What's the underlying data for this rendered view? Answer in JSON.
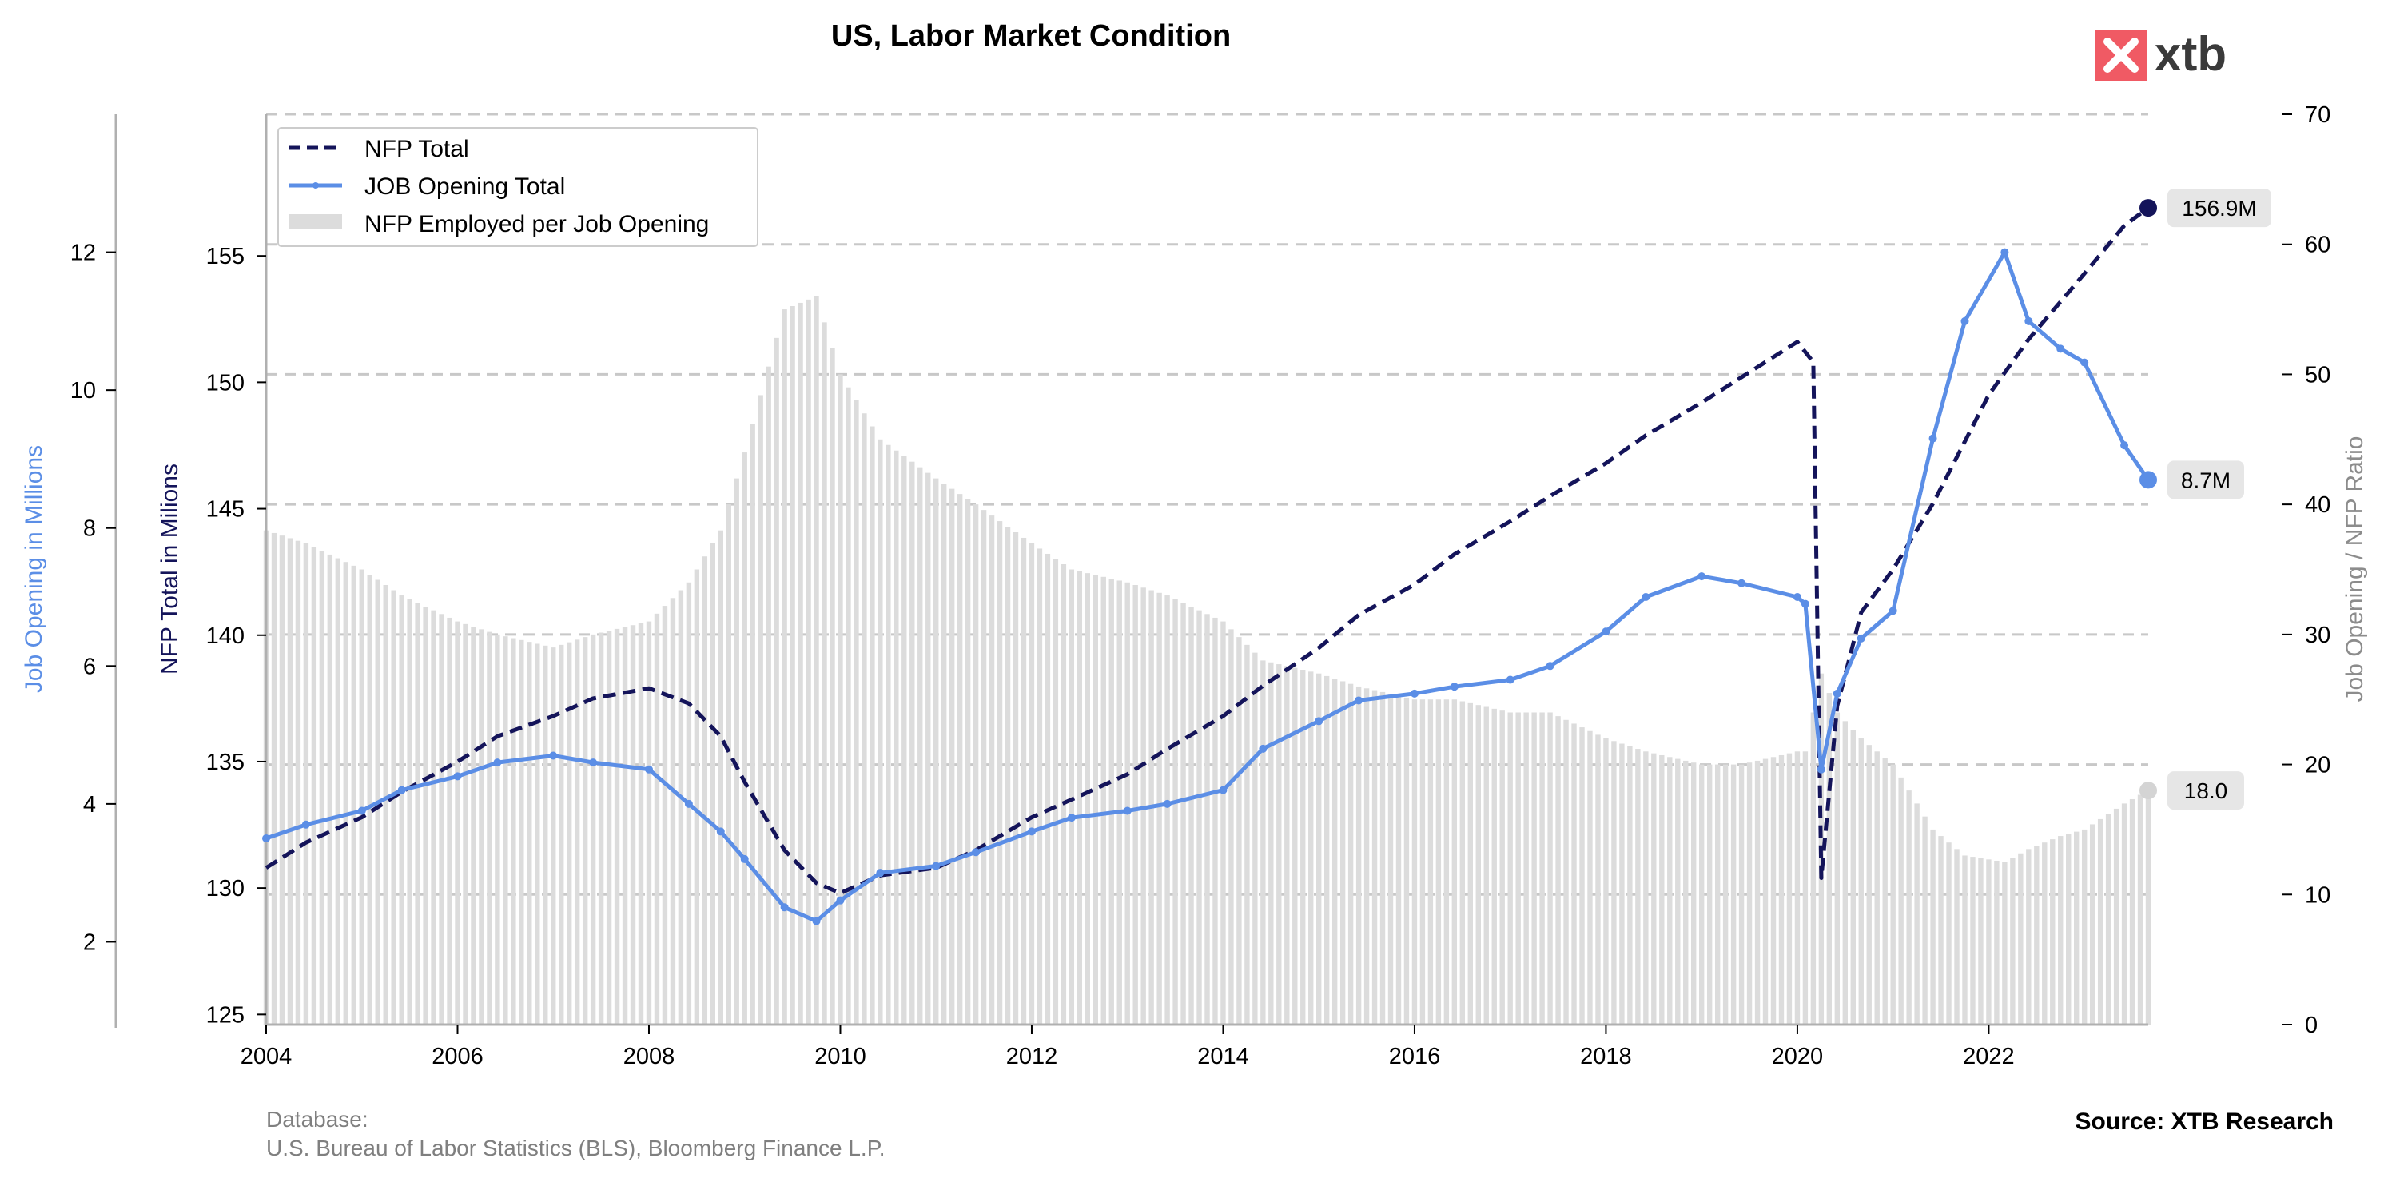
{
  "title": "US, Labor Market Condition",
  "logo": {
    "text": "xtb",
    "color": "#f05a64"
  },
  "footer": {
    "database_label": "Database:",
    "database_sources": "U.S. Bureau of Labor Statistics (BLS), Bloomberg Finance L.P.",
    "source": "Source: XTB Research"
  },
  "chart_data": {
    "type": "line",
    "title": "US, Labor Market Condition",
    "x_range": [
      "2004-01",
      "2023-09"
    ],
    "x_ticks": [
      "2004",
      "2006",
      "2008",
      "2010",
      "2012",
      "2014",
      "2016",
      "2018",
      "2020",
      "2022"
    ],
    "axes": {
      "left_outer": {
        "label": "Job Opening in Millions",
        "ticks": [
          "2",
          "4",
          "6",
          "8",
          "10",
          "12"
        ],
        "range": [
          0.8,
          14.0
        ],
        "color": "#5b8ee6"
      },
      "left_inner": {
        "label": "NFP Total in Milions",
        "ticks": [
          "125",
          "130",
          "135",
          "140",
          "145",
          "150",
          "155"
        ],
        "range": [
          124.6,
          160.6
        ],
        "color": "#14145a"
      },
      "right": {
        "label": "Job Opening / NFP Ratio",
        "ticks": [
          "0",
          "10",
          "20",
          "30",
          "40",
          "50",
          "60",
          "70"
        ],
        "range": [
          0,
          70
        ],
        "color": "#8c8c8c"
      }
    },
    "grid": "horizontal dashed on right axis",
    "legend": {
      "placement": "top-left",
      "entries": [
        "NFP Total",
        "JOB Opening Total",
        "NFP Employed per Job Opening"
      ]
    },
    "series": [
      {
        "name": "NFP Total",
        "axis": "left_inner",
        "style": "dashed",
        "color": "#14145a",
        "end_label": "156.9M",
        "points": [
          [
            "2004-01",
            130.8
          ],
          [
            "2004-06",
            131.8
          ],
          [
            "2005-01",
            132.8
          ],
          [
            "2005-06",
            133.8
          ],
          [
            "2006-01",
            135.0
          ],
          [
            "2006-06",
            136.0
          ],
          [
            "2007-01",
            136.8
          ],
          [
            "2007-06",
            137.5
          ],
          [
            "2008-01",
            137.9
          ],
          [
            "2008-06",
            137.3
          ],
          [
            "2008-10",
            136.0
          ],
          [
            "2009-01",
            134.2
          ],
          [
            "2009-06",
            131.5
          ],
          [
            "2009-10",
            130.2
          ],
          [
            "2010-01",
            129.8
          ],
          [
            "2010-06",
            130.5
          ],
          [
            "2011-01",
            130.8
          ],
          [
            "2011-06",
            131.5
          ],
          [
            "2012-01",
            132.8
          ],
          [
            "2012-06",
            133.5
          ],
          [
            "2013-01",
            134.5
          ],
          [
            "2013-06",
            135.5
          ],
          [
            "2014-01",
            136.8
          ],
          [
            "2014-06",
            138.0
          ],
          [
            "2015-01",
            139.5
          ],
          [
            "2015-06",
            140.8
          ],
          [
            "2016-01",
            142.0
          ],
          [
            "2016-06",
            143.2
          ],
          [
            "2017-01",
            144.5
          ],
          [
            "2017-06",
            145.5
          ],
          [
            "2018-01",
            146.8
          ],
          [
            "2018-06",
            147.9
          ],
          [
            "2019-01",
            149.2
          ],
          [
            "2019-06",
            150.2
          ],
          [
            "2020-01",
            151.6
          ],
          [
            "2020-03",
            150.8
          ],
          [
            "2020-04",
            130.4
          ],
          [
            "2020-06",
            137.2
          ],
          [
            "2020-09",
            140.9
          ],
          [
            "2021-01",
            142.6
          ],
          [
            "2021-06",
            145.2
          ],
          [
            "2022-01",
            149.5
          ],
          [
            "2022-06",
            151.7
          ],
          [
            "2023-01",
            154.3
          ],
          [
            "2023-06",
            156.2
          ],
          [
            "2023-09",
            156.9
          ]
        ]
      },
      {
        "name": "JOB Opening Total",
        "axis": "left_outer",
        "style": "solid with markers",
        "color": "#5b8ee6",
        "end_label": "8.7M",
        "points": [
          [
            "2004-01",
            3.5
          ],
          [
            "2004-06",
            3.7
          ],
          [
            "2005-01",
            3.9
          ],
          [
            "2005-06",
            4.2
          ],
          [
            "2006-01",
            4.4
          ],
          [
            "2006-06",
            4.6
          ],
          [
            "2007-01",
            4.7
          ],
          [
            "2007-06",
            4.6
          ],
          [
            "2008-01",
            4.5
          ],
          [
            "2008-06",
            4.0
          ],
          [
            "2008-10",
            3.6
          ],
          [
            "2009-01",
            3.2
          ],
          [
            "2009-06",
            2.5
          ],
          [
            "2009-10",
            2.3
          ],
          [
            "2010-01",
            2.6
          ],
          [
            "2010-06",
            3.0
          ],
          [
            "2011-01",
            3.1
          ],
          [
            "2011-06",
            3.3
          ],
          [
            "2012-01",
            3.6
          ],
          [
            "2012-06",
            3.8
          ],
          [
            "2013-01",
            3.9
          ],
          [
            "2013-06",
            4.0
          ],
          [
            "2014-01",
            4.2
          ],
          [
            "2014-06",
            4.8
          ],
          [
            "2015-01",
            5.2
          ],
          [
            "2015-06",
            5.5
          ],
          [
            "2016-01",
            5.6
          ],
          [
            "2016-06",
            5.7
          ],
          [
            "2017-01",
            5.8
          ],
          [
            "2017-06",
            6.0
          ],
          [
            "2018-01",
            6.5
          ],
          [
            "2018-06",
            7.0
          ],
          [
            "2019-01",
            7.3
          ],
          [
            "2019-06",
            7.2
          ],
          [
            "2020-01",
            7.0
          ],
          [
            "2020-02",
            6.9
          ],
          [
            "2020-04",
            4.5
          ],
          [
            "2020-06",
            5.6
          ],
          [
            "2020-09",
            6.4
          ],
          [
            "2021-01",
            6.8
          ],
          [
            "2021-06",
            9.3
          ],
          [
            "2021-10",
            11.0
          ],
          [
            "2022-03",
            12.0
          ],
          [
            "2022-06",
            11.0
          ],
          [
            "2022-10",
            10.6
          ],
          [
            "2023-01",
            10.4
          ],
          [
            "2023-06",
            9.2
          ],
          [
            "2023-09",
            8.7
          ]
        ]
      },
      {
        "name": "NFP Employed per Job Opening",
        "axis": "right",
        "style": "bars",
        "color": "#dcdcdc",
        "end_label": "18.0",
        "points": [
          [
            "2004-01",
            38
          ],
          [
            "2004-06",
            37
          ],
          [
            "2005-01",
            35
          ],
          [
            "2005-06",
            33
          ],
          [
            "2006-01",
            31
          ],
          [
            "2006-06",
            30
          ],
          [
            "2007-01",
            29
          ],
          [
            "2007-06",
            30
          ],
          [
            "2008-01",
            31
          ],
          [
            "2008-06",
            34
          ],
          [
            "2008-10",
            38
          ],
          [
            "2009-01",
            44
          ],
          [
            "2009-06",
            55
          ],
          [
            "2009-10",
            56
          ],
          [
            "2010-01",
            50
          ],
          [
            "2010-06",
            45
          ],
          [
            "2011-01",
            42
          ],
          [
            "2011-06",
            40
          ],
          [
            "2012-01",
            37
          ],
          [
            "2012-06",
            35
          ],
          [
            "2013-01",
            34
          ],
          [
            "2013-06",
            33
          ],
          [
            "2014-01",
            31
          ],
          [
            "2014-06",
            28
          ],
          [
            "2015-01",
            27
          ],
          [
            "2015-06",
            26
          ],
          [
            "2016-01",
            25
          ],
          [
            "2016-06",
            25
          ],
          [
            "2017-01",
            24
          ],
          [
            "2017-06",
            24
          ],
          [
            "2018-01",
            22
          ],
          [
            "2018-06",
            21
          ],
          [
            "2019-01",
            20
          ],
          [
            "2019-06",
            20
          ],
          [
            "2020-01",
            21
          ],
          [
            "2020-02",
            21
          ],
          [
            "2020-04",
            27
          ],
          [
            "2020-06",
            24
          ],
          [
            "2020-09",
            22
          ],
          [
            "2021-01",
            20
          ],
          [
            "2021-06",
            15
          ],
          [
            "2021-10",
            13
          ],
          [
            "2022-03",
            12.5
          ],
          [
            "2022-06",
            13.5
          ],
          [
            "2022-10",
            14.5
          ],
          [
            "2023-01",
            15
          ],
          [
            "2023-06",
            17
          ],
          [
            "2023-09",
            18.0
          ]
        ]
      }
    ]
  }
}
